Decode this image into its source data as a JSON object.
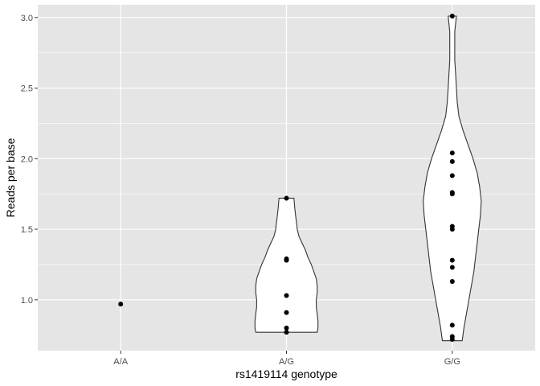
{
  "chart_data": {
    "type": "violin",
    "xlabel": "rs1419114 genotype",
    "ylabel": "Reads per base",
    "ylim": [
      0.64,
      3.09
    ],
    "y_ticks": [
      1.0,
      1.5,
      2.0,
      2.5,
      3.0
    ],
    "y_tick_labels": [
      "1.0",
      "1.5",
      "2.0",
      "2.5",
      "3.0"
    ],
    "categories": [
      "A/A",
      "A/G",
      "G/G"
    ],
    "grid": true,
    "background": "#e5e5e5",
    "grid_color": "#ffffff",
    "violin_fill": "#ffffff",
    "violin_stroke": "#333333",
    "point_color": "#000000",
    "groups": [
      {
        "category": "A/A",
        "points": [
          0.97
        ],
        "violin": []
      },
      {
        "category": "A/G",
        "points": [
          1.72,
          1.29,
          1.28,
          1.03,
          0.91,
          0.8,
          0.77
        ],
        "violin": [
          [
            0.77,
            0.37
          ],
          [
            0.8,
            0.38
          ],
          [
            0.85,
            0.38
          ],
          [
            0.9,
            0.37
          ],
          [
            0.95,
            0.36
          ],
          [
            1.0,
            0.36
          ],
          [
            1.05,
            0.37
          ],
          [
            1.1,
            0.37
          ],
          [
            1.15,
            0.36
          ],
          [
            1.2,
            0.33
          ],
          [
            1.25,
            0.3
          ],
          [
            1.3,
            0.26
          ],
          [
            1.35,
            0.23
          ],
          [
            1.4,
            0.19
          ],
          [
            1.45,
            0.15
          ],
          [
            1.5,
            0.13
          ],
          [
            1.55,
            0.12
          ],
          [
            1.6,
            0.11
          ],
          [
            1.65,
            0.1
          ],
          [
            1.72,
            0.09
          ]
        ]
      },
      {
        "category": "G/G",
        "points": [
          3.01,
          2.04,
          1.98,
          1.88,
          1.76,
          1.75,
          1.52,
          1.5,
          1.28,
          1.23,
          1.13,
          0.82,
          0.74,
          0.72
        ],
        "violin": [
          [
            0.71,
            0.12
          ],
          [
            0.8,
            0.14
          ],
          [
            0.9,
            0.17
          ],
          [
            1.0,
            0.2
          ],
          [
            1.1,
            0.23
          ],
          [
            1.2,
            0.26
          ],
          [
            1.3,
            0.28
          ],
          [
            1.4,
            0.3
          ],
          [
            1.5,
            0.32
          ],
          [
            1.6,
            0.34
          ],
          [
            1.7,
            0.35
          ],
          [
            1.8,
            0.33
          ],
          [
            1.9,
            0.3
          ],
          [
            2.0,
            0.25
          ],
          [
            2.1,
            0.19
          ],
          [
            2.2,
            0.13
          ],
          [
            2.3,
            0.08
          ],
          [
            2.4,
            0.06
          ],
          [
            2.5,
            0.05
          ],
          [
            2.6,
            0.04
          ],
          [
            2.7,
            0.03
          ],
          [
            2.8,
            0.03
          ],
          [
            2.9,
            0.03
          ],
          [
            3.01,
            0.05
          ]
        ]
      }
    ]
  }
}
